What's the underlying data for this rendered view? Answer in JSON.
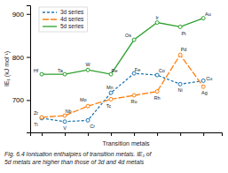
{
  "chart_data": {
    "type": "line",
    "x": [
      1,
      2,
      3,
      4,
      5,
      6,
      7,
      8
    ],
    "xlim": [
      0.5,
      8.8
    ],
    "xticks": [
      1,
      2,
      3,
      4,
      5,
      6,
      7,
      8
    ],
    "tick_labels": "y",
    "ylim": [
      625,
      920
    ],
    "yticks": [
      700,
      800,
      900
    ],
    "ylabel": "IE₁ (kJ mol⁻¹)",
    "xlabel": "Transition metals",
    "legend": "upper left",
    "series": [
      {
        "name": "3d series",
        "line_style": "dashed",
        "marker": "circle",
        "values": [
          658,
          650,
          653,
          717,
          762,
          758,
          737,
          745
        ],
        "labels": [
          "Ti",
          "V",
          "Cr",
          "Mn",
          "Fe",
          "Co",
          "Ni",
          "Cu"
        ]
      },
      {
        "name": "4d series",
        "line_style": "longdash",
        "marker": "circle",
        "values": [
          660,
          664,
          686,
          702,
          711,
          720,
          805,
          731
        ],
        "labels": [
          "Zr",
          "Nb",
          "Mo",
          "Tc",
          "Ru",
          "Rh",
          "Pd",
          "Ag"
        ]
      },
      {
        "name": "5d series",
        "line_style": "solid",
        "marker": "circle",
        "values": [
          760,
          760,
          770,
          760,
          840,
          880,
          870,
          890
        ],
        "labels": [
          "Hf",
          "Ta",
          "W",
          "Re",
          "Os",
          "Ir",
          "Pt",
          "Au"
        ]
      }
    ],
    "annotations": [
      "Fig. 6.4  Ionisation enthalpies of transition metals. IE₁ of",
      "5d metals are higher than those of 3d and 4d metals"
    ]
  }
}
